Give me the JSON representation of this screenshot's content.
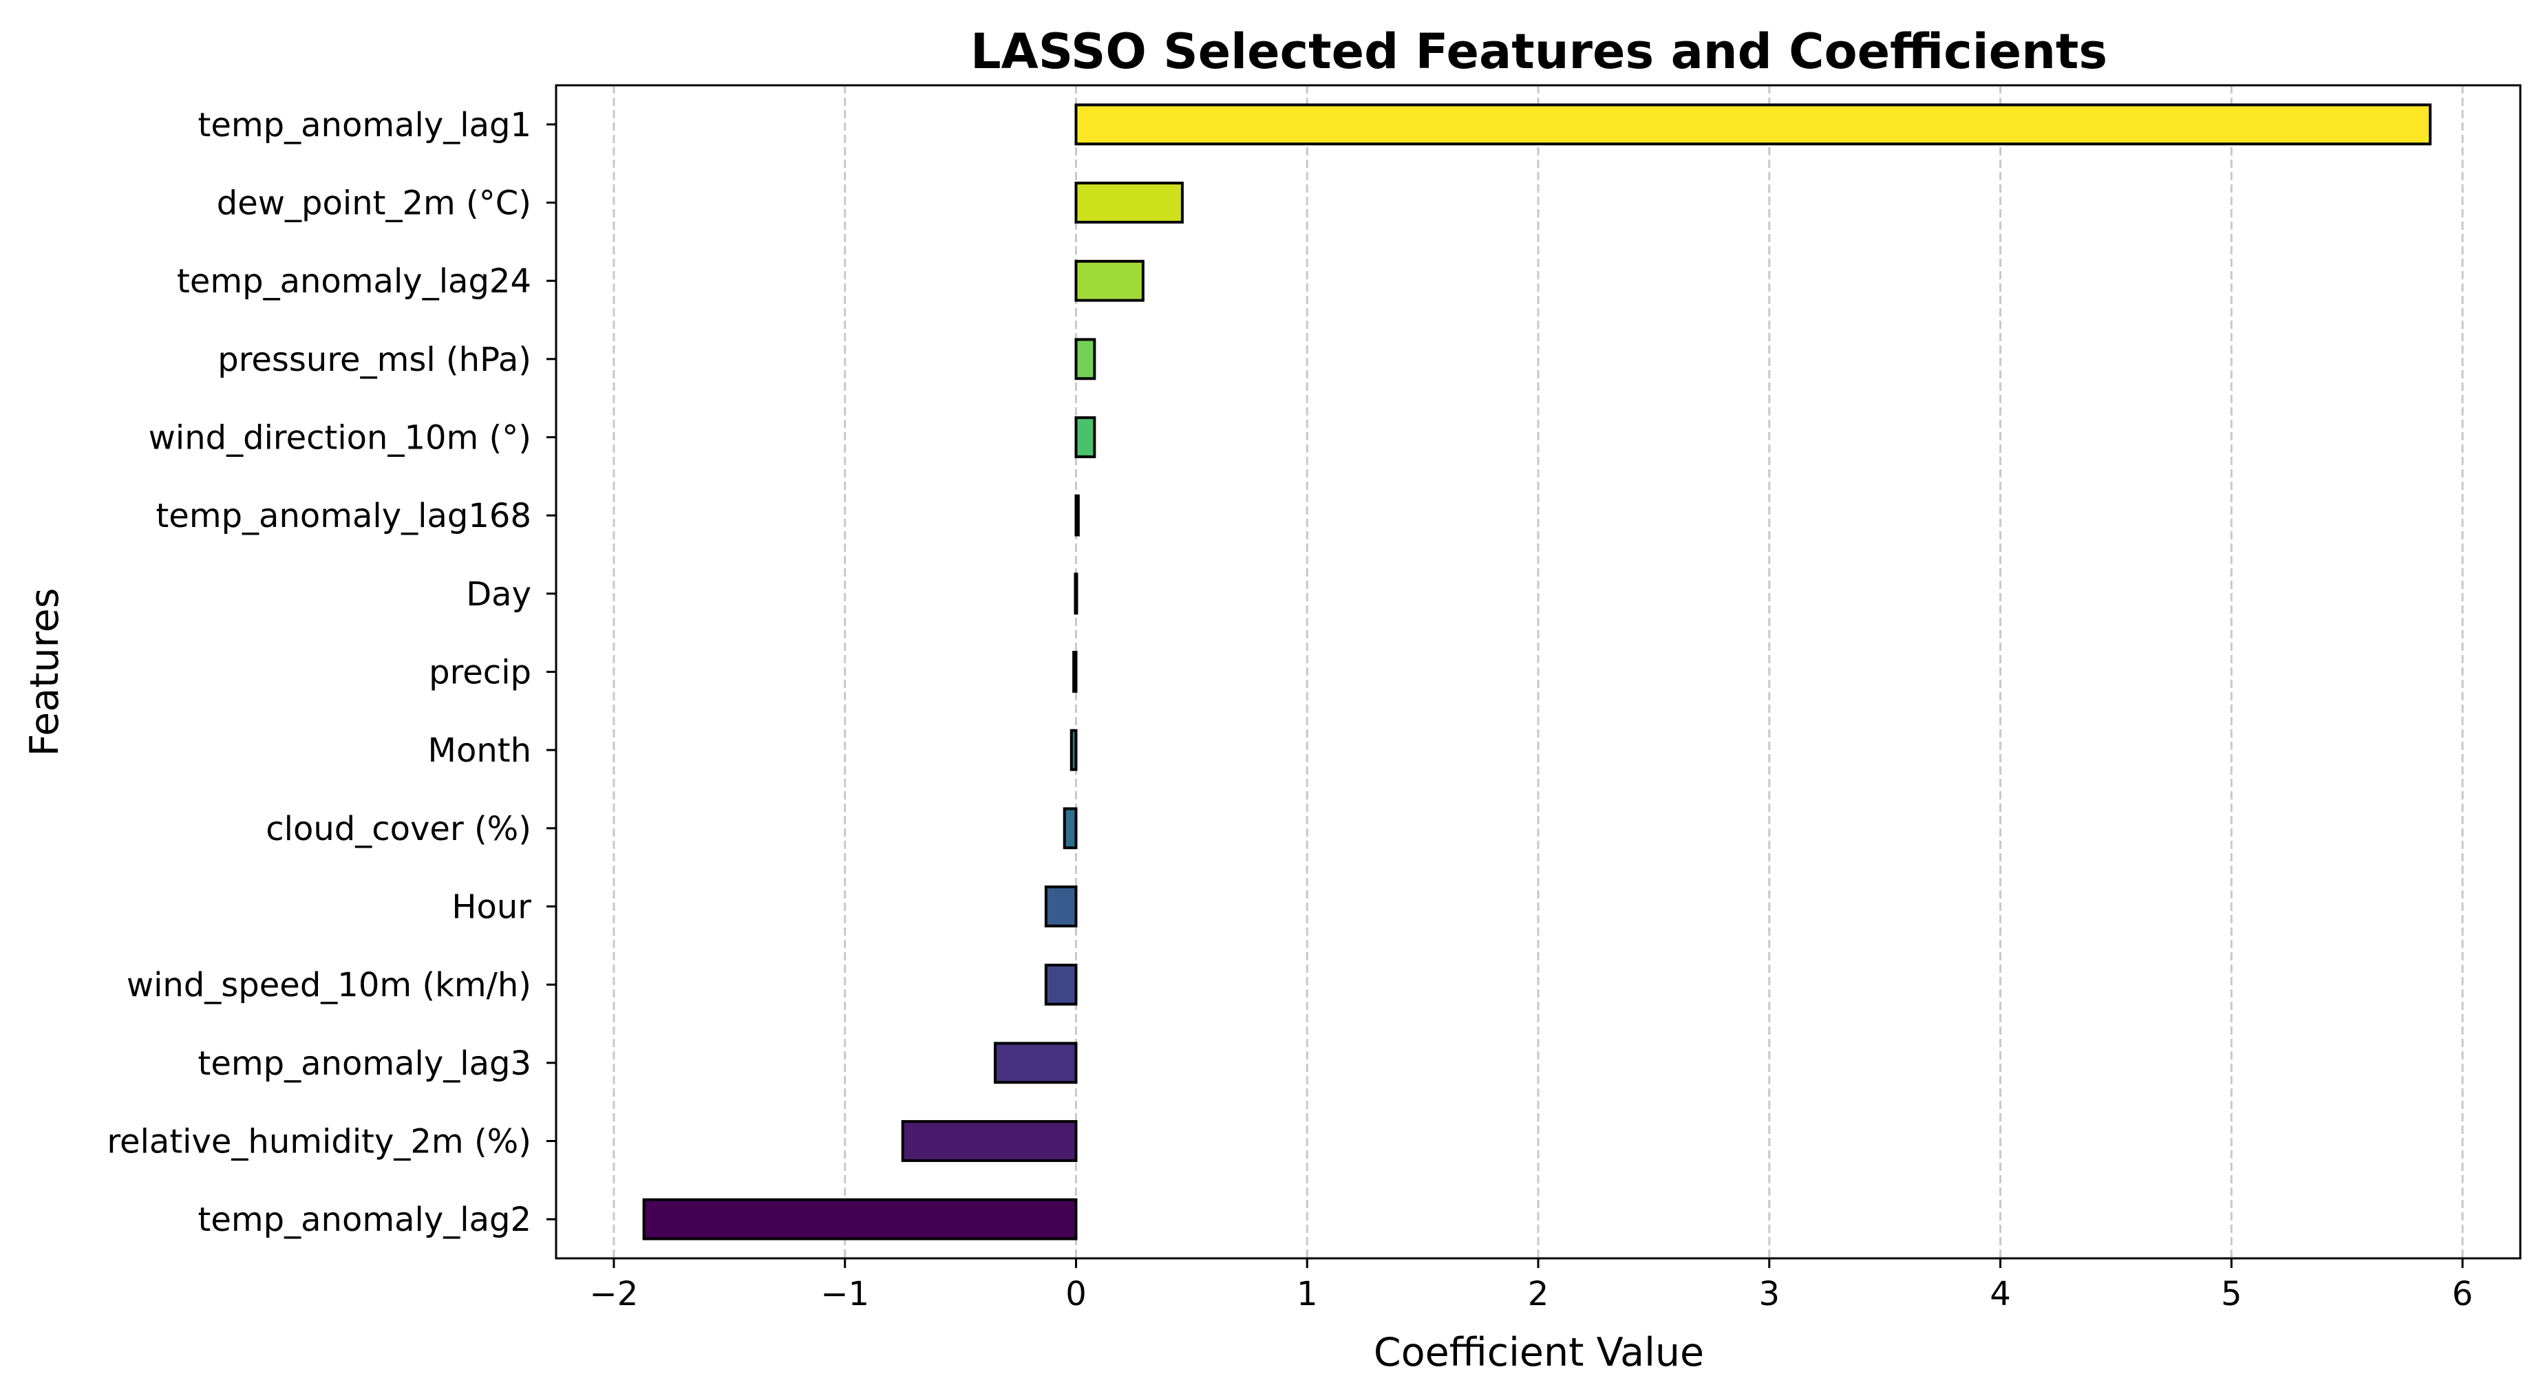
{
  "chart_data": {
    "type": "bar",
    "orientation": "horizontal",
    "title": "LASSO Selected Features and Coefficients",
    "xlabel": "Coefficient Value",
    "ylabel": "Features",
    "xlim": [
      -2.25,
      6.25
    ],
    "xticks": [
      -2,
      -1,
      0,
      1,
      2,
      3,
      4,
      5,
      6
    ],
    "xtick_labels": [
      "−2",
      "−1",
      "0",
      "1",
      "2",
      "3",
      "4",
      "5",
      "6"
    ],
    "grid": "x-dashed",
    "colormap": "viridis",
    "categories": [
      "temp_anomaly_lag1",
      "dew_point_2m (°C)",
      "temp_anomaly_lag24",
      "pressure_msl (hPa)",
      "wind_direction_10m (°)",
      "temp_anomaly_lag168",
      "Day",
      "precip",
      "Month",
      "cloud_cover (%)",
      "Hour",
      "wind_speed_10m (km/h)",
      "temp_anomaly_lag3",
      "relative_humidity_2m (%)",
      "temp_anomaly_lag2"
    ],
    "values": [
      5.86,
      0.46,
      0.29,
      0.08,
      0.08,
      0.01,
      0.005,
      -0.01,
      -0.02,
      -0.05,
      -0.13,
      -0.13,
      -0.35,
      -0.75,
      -1.87
    ],
    "colors": [
      "#fde725",
      "#cde11d",
      "#a0da39",
      "#74d055",
      "#4ac16d",
      "#2db27d",
      "#1fa187",
      "#21918c",
      "#277f8e",
      "#2e6f8e",
      "#365c8d",
      "#3f4788",
      "#46327e",
      "#481b6d",
      "#440154"
    ]
  }
}
